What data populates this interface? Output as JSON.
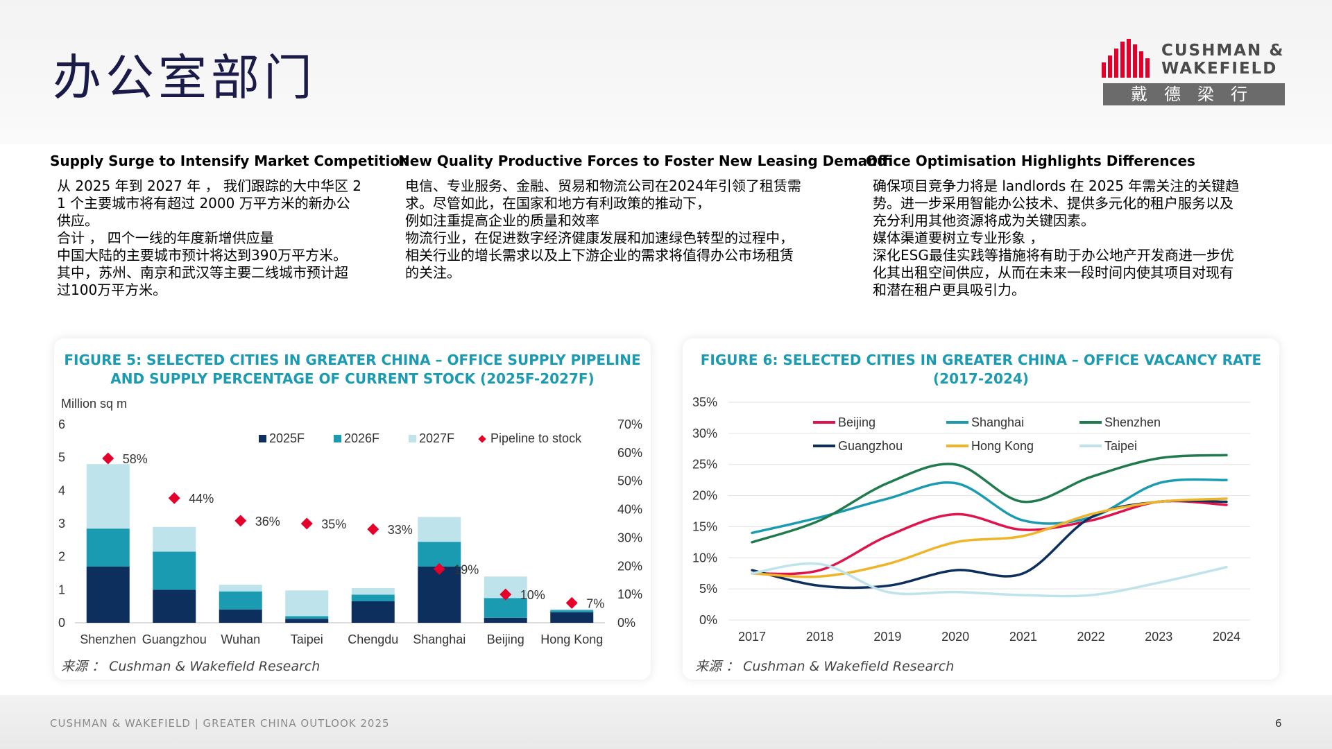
{
  "page": {
    "title": "办公室部门",
    "footer": "CUSHMAN & WAKEFIELD | GREATER CHINA OUTLOOK 2025",
    "page_number": "6"
  },
  "logo": {
    "line1": "CUSHMAN &",
    "line2": "WAKEFIELD",
    "cn": "戴德梁行",
    "color": "#e4002b"
  },
  "columns": [
    {
      "heading": "Supply Surge to Intensify Market Competition",
      "text": "从 2025 年到 2027 年 ， 我们跟踪的大中华区 2\n1 个主要城市将有超过 2000 万平方米的新办公\n供应。\n合计 ， 四个一线的年度新增供应量\n中国大陆的主要城市预计将达到390万平方米。\n其中，苏州、南京和武汉等主要二线城市预计超\n过100万平方米。"
    },
    {
      "heading": "New Quality Productive Forces to Foster New Leasing Demand",
      "text": "电信、专业服务、金融、贸易和物流公司在2024年引领了租赁需\n求。尽管如此，在国家和地方有利政策的推动下，\n例如注重提高企业的质量和效率\n物流行业，在促进数字经济健康发展和加速绿色转型的过程中，\n相关行业的增长需求以及上下游企业的需求将值得办公市场租赁\n的关注。"
    },
    {
      "heading": "Office Optimisation Highlights Differences",
      "text": "确保项目竞争力将是 landlords 在 2025 年需关注的关键趋\n势。进一步采用智能办公技术、提供多元化的租户服务以及\n充分利用其他资源将成为关键因素。\n媒体渠道要树立专业形象 ，\n深化ESG最佳实践等措施将有助于办公地产开发商进一步优\n化其出租空间供应，从而在未来一段时间内使其项目对现有\n和潜在租户更具吸引力。"
    }
  ],
  "chart_data": [
    {
      "type": "bar",
      "title": "FIGURE 5: SELECTED CITIES IN GREATER CHINA – OFFICE SUPPLY PIPELINE\nAND SUPPLY PERCENTAGE OF CURRENT STOCK (2025F-2027F)",
      "ylabel": "Million sq m",
      "stacked": true,
      "categories": [
        "Shenzhen",
        "Guangzhou",
        "Wuhan",
        "Taipei",
        "Chengdu",
        "Shanghai",
        "Beijing",
        "Hong Kong"
      ],
      "ylim": [
        0,
        6
      ],
      "yticks": [
        "0",
        "1",
        "2",
        "3",
        "4",
        "5",
        "6"
      ],
      "y2lim": [
        0,
        70
      ],
      "y2ticks": [
        "0%",
        "10%",
        "20%",
        "30%",
        "40%",
        "50%",
        "60%",
        "70%"
      ],
      "legend_position": "top-right",
      "series": [
        {
          "name": "2025F",
          "color": "#0d2f5e",
          "values": [
            1.7,
            1.0,
            0.4,
            0.12,
            0.65,
            1.7,
            0.15,
            0.32
          ]
        },
        {
          "name": "2026F",
          "color": "#1a9bb1",
          "values": [
            1.15,
            1.15,
            0.55,
            0.08,
            0.2,
            0.75,
            0.6,
            0.06
          ]
        },
        {
          "name": "2027F",
          "color": "#bfe3ea",
          "values": [
            1.95,
            0.75,
            0.2,
            0.78,
            0.2,
            0.75,
            0.65,
            0.04
          ]
        }
      ],
      "secondary": {
        "name": "Pipeline to stock",
        "color": "#e4002b",
        "values": [
          58,
          44,
          36,
          35,
          33,
          19,
          10,
          7
        ],
        "labels": [
          "58%",
          "44%",
          "36%",
          "35%",
          "33%",
          "19%",
          "10%",
          "7%"
        ]
      },
      "source": "来源 ： Cushman & Wakefield Research"
    },
    {
      "type": "line",
      "title": "FIGURE 6: SELECTED CITIES IN GREATER CHINA – OFFICE VACANCY RATE\n(2017-2024)",
      "x": [
        "2017",
        "2018",
        "2019",
        "2020",
        "2021",
        "2022",
        "2023",
        "2024"
      ],
      "ylim": [
        0,
        35
      ],
      "yticks": [
        "0%",
        "5%",
        "10%",
        "15%",
        "20%",
        "25%",
        "30%",
        "35%"
      ],
      "grid": true,
      "legend_position": "top",
      "series": [
        {
          "name": "Beijing",
          "color": "#e0144c",
          "values": [
            7.5,
            8.0,
            13.5,
            17.0,
            14.5,
            16.0,
            19.0,
            18.5
          ]
        },
        {
          "name": "Shanghai",
          "color": "#1a9bb1",
          "values": [
            14.0,
            16.5,
            19.5,
            22.0,
            16.0,
            16.5,
            22.0,
            22.5
          ]
        },
        {
          "name": "Shenzhen",
          "color": "#1f7a4d",
          "values": [
            12.5,
            16.0,
            22.0,
            25.0,
            19.0,
            23.0,
            26.0,
            26.5
          ]
        },
        {
          "name": "Guangzhou",
          "color": "#0d2f5e",
          "values": [
            8.0,
            5.5,
            5.5,
            8.0,
            7.5,
            16.5,
            19.0,
            19.0
          ]
        },
        {
          "name": "Hong Kong",
          "color": "#f0b429",
          "values": [
            7.5,
            7.0,
            9.0,
            12.5,
            13.5,
            17.0,
            19.0,
            19.5
          ]
        },
        {
          "name": "Taipei",
          "color": "#bfe3ea",
          "values": [
            7.5,
            9.0,
            4.5,
            4.5,
            4.0,
            4.0,
            6.0,
            8.5
          ]
        }
      ],
      "source": "来源 ： Cushman & Wakefield Research"
    }
  ]
}
